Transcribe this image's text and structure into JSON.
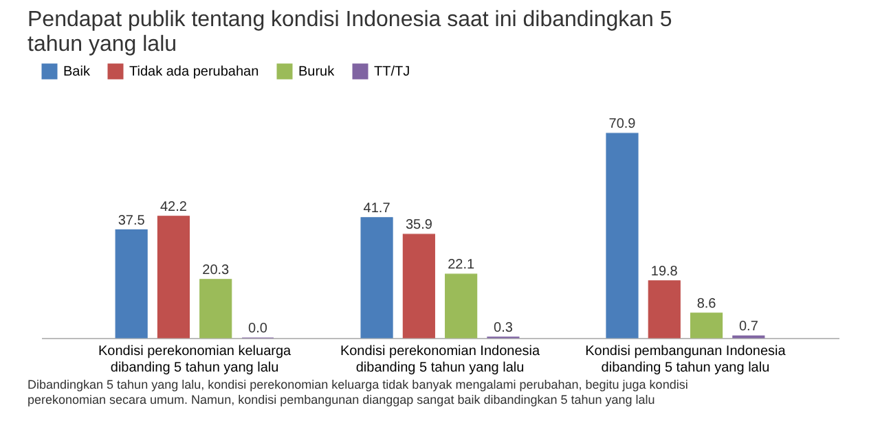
{
  "chart_data": {
    "type": "bar",
    "title": "Pendapat publik tentang kondisi Indonesia saat ini dibandingkan 5 tahun yang lalu",
    "categories": [
      "Kondisi perekonomian keluarga dibanding 5 tahun yang lalu",
      "Kondisi perekonomian Indonesia dibanding 5 tahun yang lalu",
      "Kondisi pembangunan Indonesia dibanding 5 tahun yang lalu"
    ],
    "series": [
      {
        "name": "Baik",
        "color": "#4a7ebb",
        "values": [
          37.5,
          41.7,
          70.9
        ],
        "value_labels": [
          "37.5",
          "41.7",
          "70.9"
        ]
      },
      {
        "name": "Tidak ada perubahan",
        "color": "#c0504d",
        "values": [
          42.2,
          35.9,
          19.8
        ],
        "value_labels": [
          "42.2",
          "35.9",
          "19.8"
        ]
      },
      {
        "name": "Buruk",
        "color": "#9bbb59",
        "values": [
          20.3,
          22.1,
          8.6
        ],
        "value_labels": [
          "20.3",
          "22.1",
          "8.6"
        ]
      },
      {
        "name": "TT/TJ",
        "color": "#8064a2",
        "values": [
          0,
          0.3,
          0.7
        ],
        "value_labels": [
          "0.0",
          "0.3",
          "0.7"
        ]
      }
    ],
    "legend": "top",
    "grid": false,
    "annotations": [
      "Dibandingkan 5 tahun yang lalu, kondisi perekonomian keluarga tidak banyak mengalami perubahan, begitu juga kondisi perekonomian secara umum. Namun, kondisi pembangunan dianggap sangat baik dibandingkan 5 tahun yang lalu"
    ]
  }
}
